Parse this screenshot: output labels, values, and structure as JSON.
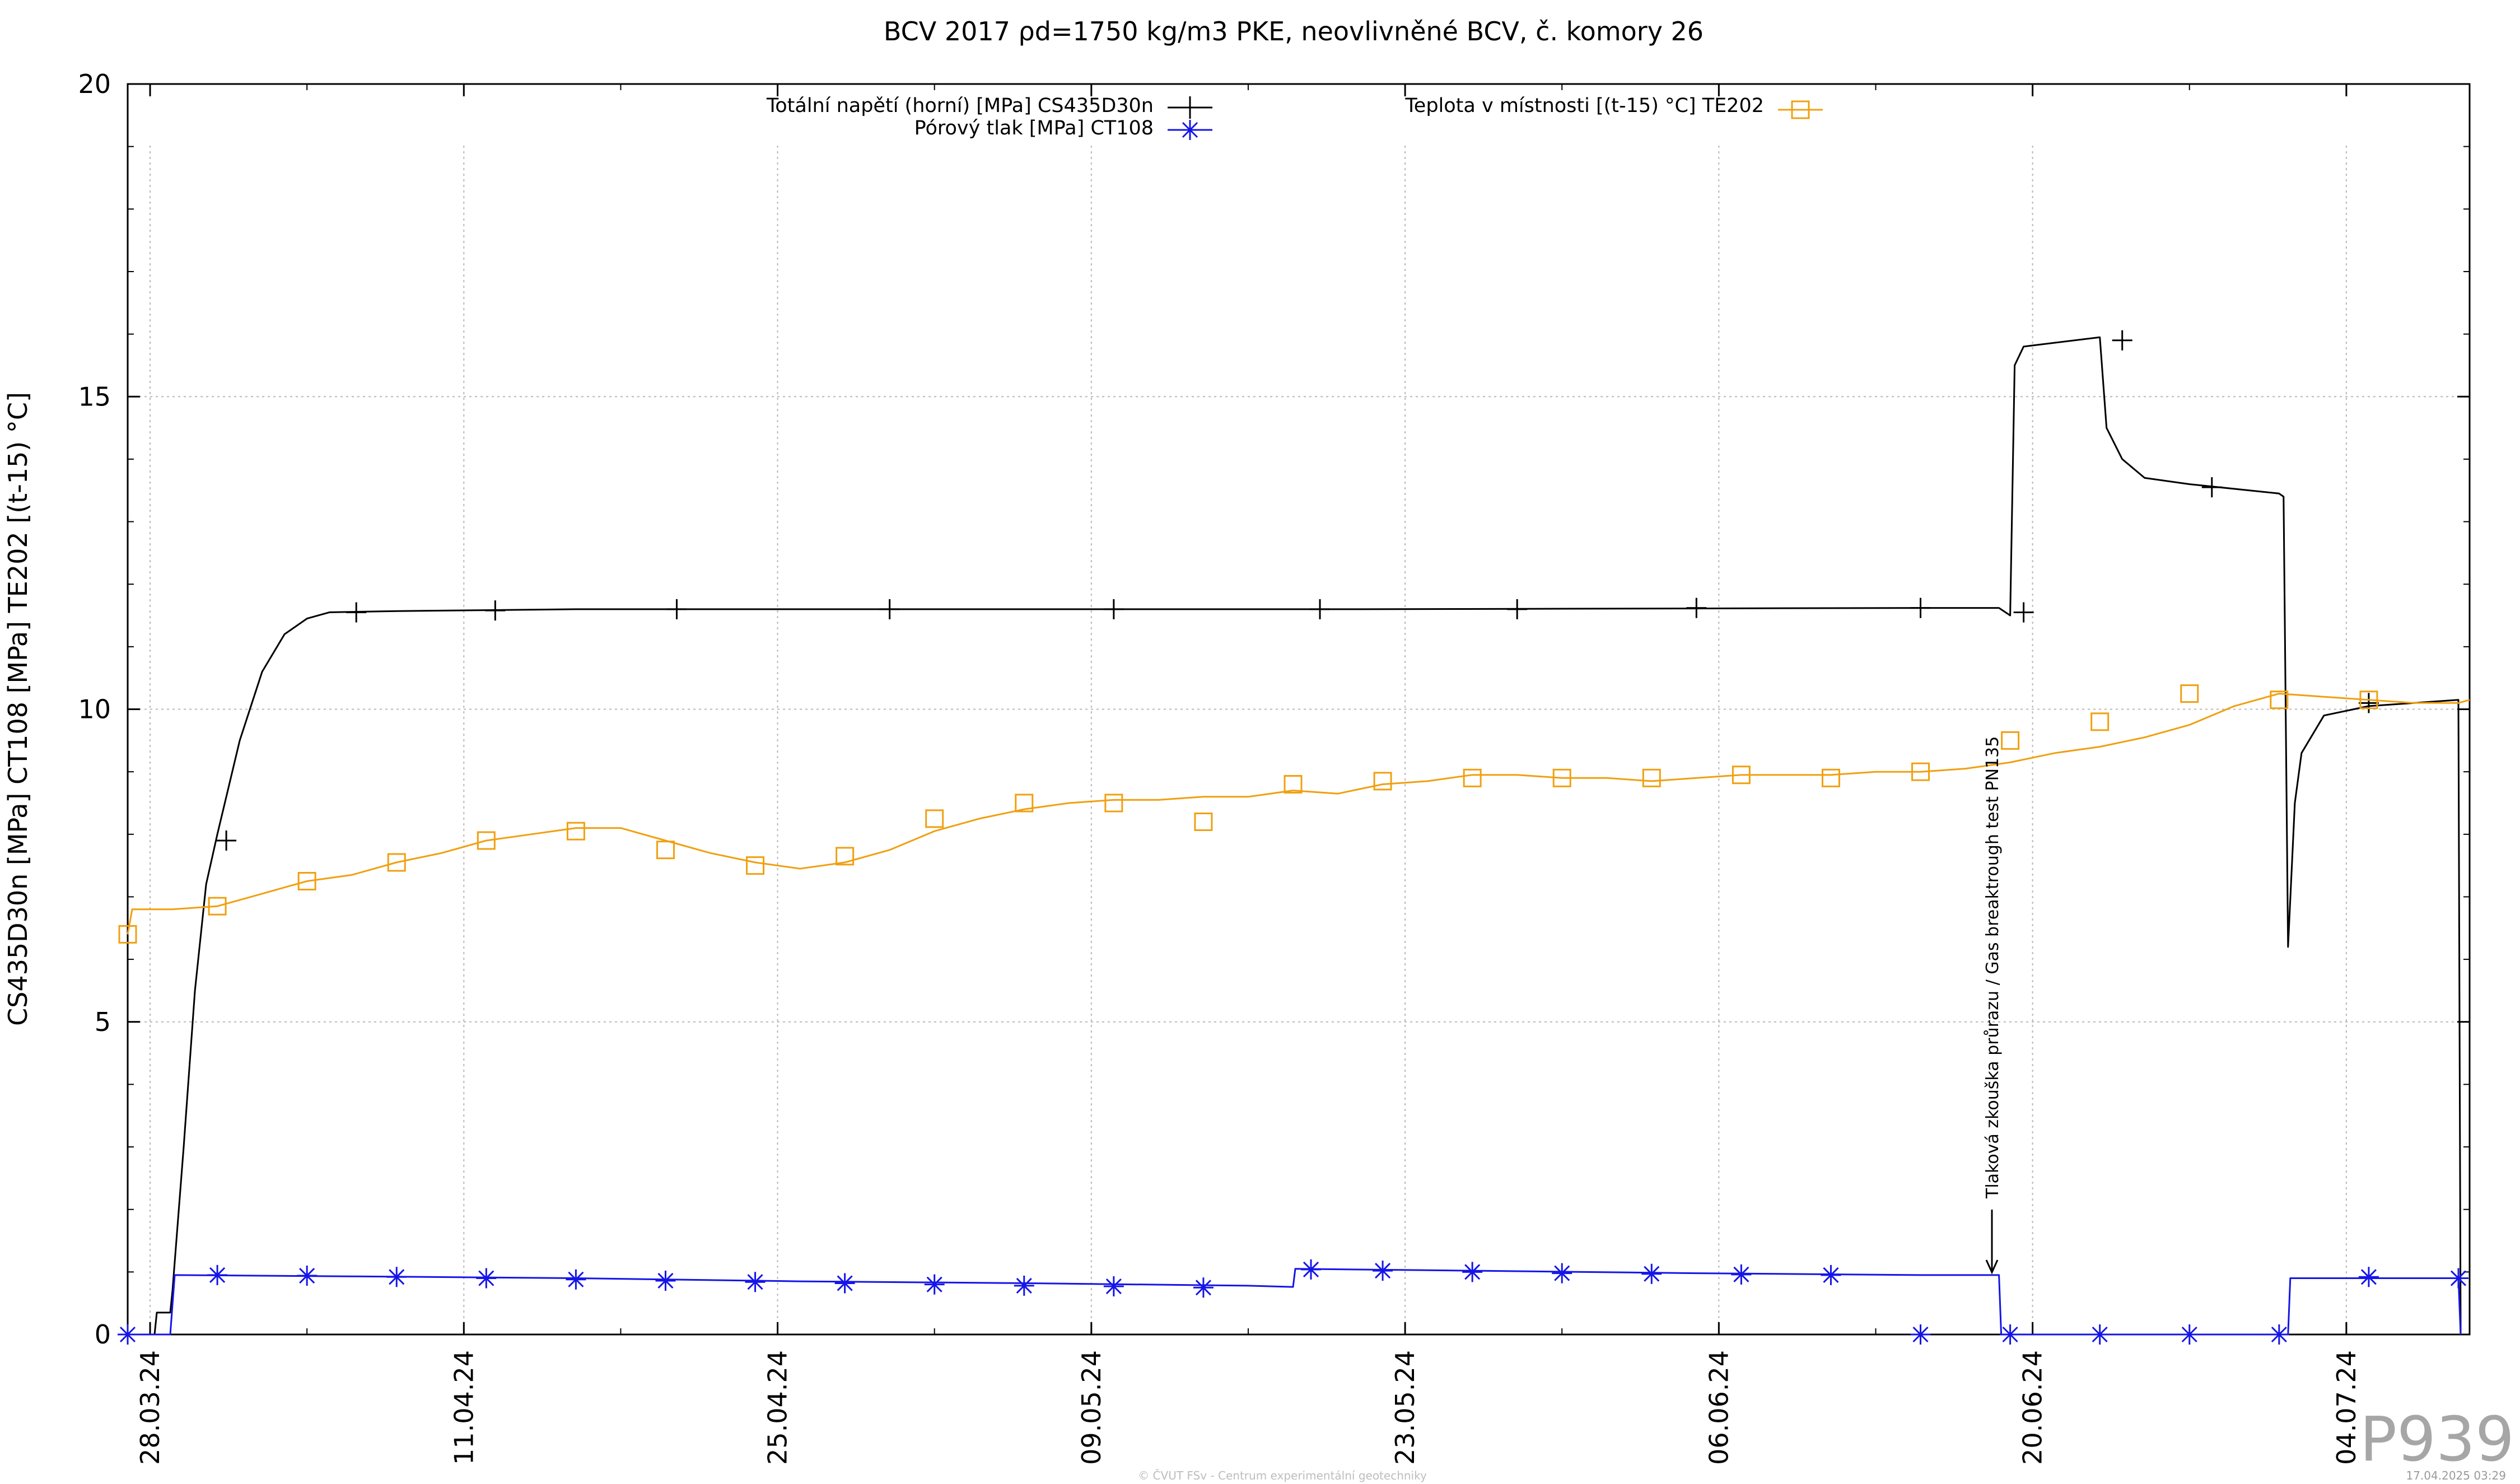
{
  "chart_data": {
    "type": "line",
    "title": "BCV 2017 ρd=1750 kg/m3 PKE, neovlivněné BCV, č. komory 26",
    "ylabel": "CS435D30n [MPa] CT108 [MPa] TE202 [(t-15) °C]",
    "xlabel": "",
    "ylim": [
      0,
      20
    ],
    "yticks": [
      "0",
      "5",
      "10",
      "15",
      "20"
    ],
    "yticks_values": [
      0,
      5,
      10,
      15,
      20
    ],
    "xlim_days": [
      0,
      100
    ],
    "xticks": [
      "28.03.24",
      "11.04.24",
      "25.04.24",
      "09.05.24",
      "23.05.24",
      "06.06.24",
      "20.06.24",
      "04.07.24"
    ],
    "grid": true,
    "legend_position": "top",
    "series": [
      {
        "name": "Totální napětí (horní) [MPa] CS435D30n",
        "color": "#000000",
        "marker": "plus",
        "points": [
          [
            0,
            0
          ],
          [
            1.2,
            0
          ],
          [
            1.3,
            0.35
          ],
          [
            1.9,
            0.35
          ],
          [
            2.0,
            0.7
          ],
          [
            2.5,
            3.0
          ],
          [
            3.0,
            5.5
          ],
          [
            3.5,
            7.2
          ],
          [
            4,
            8
          ],
          [
            5,
            9.5
          ],
          [
            6,
            10.6
          ],
          [
            7,
            11.2
          ],
          [
            8,
            11.45
          ],
          [
            9,
            11.55
          ],
          [
            12,
            11.57
          ],
          [
            20,
            11.6
          ],
          [
            40,
            11.6
          ],
          [
            55,
            11.6
          ],
          [
            80,
            11.62
          ],
          [
            83.5,
            11.62
          ],
          [
            84,
            11.5
          ],
          [
            84.2,
            15.5
          ],
          [
            84.6,
            15.8
          ],
          [
            88,
            15.95
          ],
          [
            88.3,
            14.5
          ],
          [
            89,
            14
          ],
          [
            90,
            13.7
          ],
          [
            92,
            13.6
          ],
          [
            96,
            13.45
          ],
          [
            96.2,
            13.4
          ],
          [
            96.4,
            6.2
          ],
          [
            96.7,
            8.5
          ],
          [
            97,
            9.3
          ],
          [
            98,
            9.9
          ],
          [
            100,
            10.05
          ],
          [
            104,
            10.15
          ],
          [
            104.1,
            0
          ]
        ],
        "marker_points": [
          [
            4.4,
            7.9
          ],
          [
            10.2,
            11.55
          ],
          [
            16.4,
            11.58
          ],
          [
            24.5,
            11.6
          ],
          [
            34,
            11.6
          ],
          [
            44,
            11.6
          ],
          [
            53.2,
            11.6
          ],
          [
            62,
            11.6
          ],
          [
            70,
            11.62
          ],
          [
            80,
            11.62
          ],
          [
            84.6,
            11.55
          ],
          [
            89,
            15.9
          ],
          [
            93,
            13.55
          ],
          [
            100,
            10.1
          ]
        ]
      },
      {
        "name": "Pórový tlak [MPa] CT108",
        "color": "#1515e8",
        "marker": "asterisk",
        "points": [
          [
            0,
            0
          ],
          [
            1.9,
            0
          ],
          [
            2.1,
            0.95
          ],
          [
            10,
            0.93
          ],
          [
            20,
            0.9
          ],
          [
            30,
            0.85
          ],
          [
            40,
            0.82
          ],
          [
            50,
            0.78
          ],
          [
            52,
            0.76
          ],
          [
            52.1,
            1.05
          ],
          [
            60,
            1.02
          ],
          [
            70,
            0.98
          ],
          [
            80,
            0.95
          ],
          [
            83.5,
            0.95
          ],
          [
            83.6,
            0
          ],
          [
            96.4,
            0
          ],
          [
            96.5,
            0.9
          ],
          [
            104,
            0.9
          ],
          [
            104.1,
            0
          ]
        ],
        "marker_points": [
          [
            0,
            0
          ],
          [
            4,
            0.95
          ],
          [
            8,
            0.94
          ],
          [
            12,
            0.92
          ],
          [
            16,
            0.9
          ],
          [
            20,
            0.88
          ],
          [
            24,
            0.86
          ],
          [
            28,
            0.84
          ],
          [
            32,
            0.82
          ],
          [
            36,
            0.8
          ],
          [
            40,
            0.78
          ],
          [
            44,
            0.77
          ],
          [
            48,
            0.75
          ],
          [
            52.8,
            1.04
          ],
          [
            56,
            1.02
          ],
          [
            60,
            1
          ],
          [
            64,
            0.98
          ],
          [
            68,
            0.97
          ],
          [
            72,
            0.96
          ],
          [
            76,
            0.95
          ],
          [
            80,
            0
          ],
          [
            84,
            0
          ],
          [
            88,
            0
          ],
          [
            92,
            0
          ],
          [
            96,
            0
          ],
          [
            100,
            0.92
          ],
          [
            104,
            0.9
          ]
        ]
      },
      {
        "name": "Teplota v místnosti [(t-15) °C] TE202",
        "color": "#f0a010",
        "marker": "square",
        "points": [
          [
            0,
            6.4
          ],
          [
            0.2,
            6.8
          ],
          [
            2,
            6.8
          ],
          [
            4,
            6.85
          ],
          [
            6,
            7.05
          ],
          [
            8,
            7.25
          ],
          [
            10,
            7.35
          ],
          [
            12,
            7.55
          ],
          [
            14,
            7.7
          ],
          [
            16,
            7.9
          ],
          [
            18,
            8.0
          ],
          [
            20,
            8.1
          ],
          [
            22,
            8.1
          ],
          [
            24,
            7.9
          ],
          [
            26,
            7.7
          ],
          [
            28,
            7.55
          ],
          [
            30,
            7.45
          ],
          [
            32,
            7.55
          ],
          [
            34,
            7.75
          ],
          [
            36,
            8.05
          ],
          [
            38,
            8.25
          ],
          [
            40,
            8.4
          ],
          [
            42,
            8.5
          ],
          [
            44,
            8.55
          ],
          [
            46,
            8.55
          ],
          [
            48,
            8.6
          ],
          [
            50,
            8.6
          ],
          [
            52,
            8.7
          ],
          [
            54,
            8.65
          ],
          [
            56,
            8.8
          ],
          [
            58,
            8.85
          ],
          [
            60,
            8.95
          ],
          [
            62,
            8.95
          ],
          [
            64,
            8.9
          ],
          [
            66,
            8.9
          ],
          [
            68,
            8.85
          ],
          [
            70,
            8.9
          ],
          [
            72,
            8.95
          ],
          [
            74,
            8.95
          ],
          [
            76,
            8.95
          ],
          [
            78,
            9.0
          ],
          [
            80,
            9.0
          ],
          [
            82,
            9.05
          ],
          [
            84,
            9.15
          ],
          [
            86,
            9.3
          ],
          [
            88,
            9.4
          ],
          [
            90,
            9.55
          ],
          [
            92,
            9.75
          ],
          [
            94,
            10.05
          ],
          [
            96,
            10.25
          ],
          [
            98,
            10.2
          ],
          [
            100,
            10.15
          ],
          [
            102,
            10.1
          ],
          [
            104,
            10.1
          ],
          [
            104.5,
            10.15
          ]
        ],
        "marker_points": [
          [
            0,
            6.4
          ],
          [
            4,
            6.85
          ],
          [
            8,
            7.25
          ],
          [
            12,
            7.55
          ],
          [
            16,
            7.9
          ],
          [
            20,
            8.05
          ],
          [
            24,
            7.75
          ],
          [
            28,
            7.5
          ],
          [
            32,
            7.65
          ],
          [
            36,
            8.25
          ],
          [
            40,
            8.5
          ],
          [
            44,
            8.5
          ],
          [
            48,
            8.2
          ],
          [
            52,
            8.8
          ],
          [
            56,
            8.85
          ],
          [
            60,
            8.9
          ],
          [
            64,
            8.9
          ],
          [
            68,
            8.9
          ],
          [
            72,
            8.95
          ],
          [
            76,
            8.9
          ],
          [
            80,
            9.0
          ],
          [
            84,
            9.5
          ],
          [
            88,
            9.8
          ],
          [
            92,
            10.25
          ],
          [
            96,
            10.15
          ],
          [
            100,
            10.15
          ]
        ]
      }
    ],
    "annotation": {
      "text": "Tlaková zkouška průrazu / Gas breaktrough test PN135",
      "x_day": 80.2
    }
  },
  "watermark": "P939",
  "footer_left": "© ČVUT FSv - Centrum experimentální geotechniky",
  "footer_right": "17.04.2025 03:29"
}
